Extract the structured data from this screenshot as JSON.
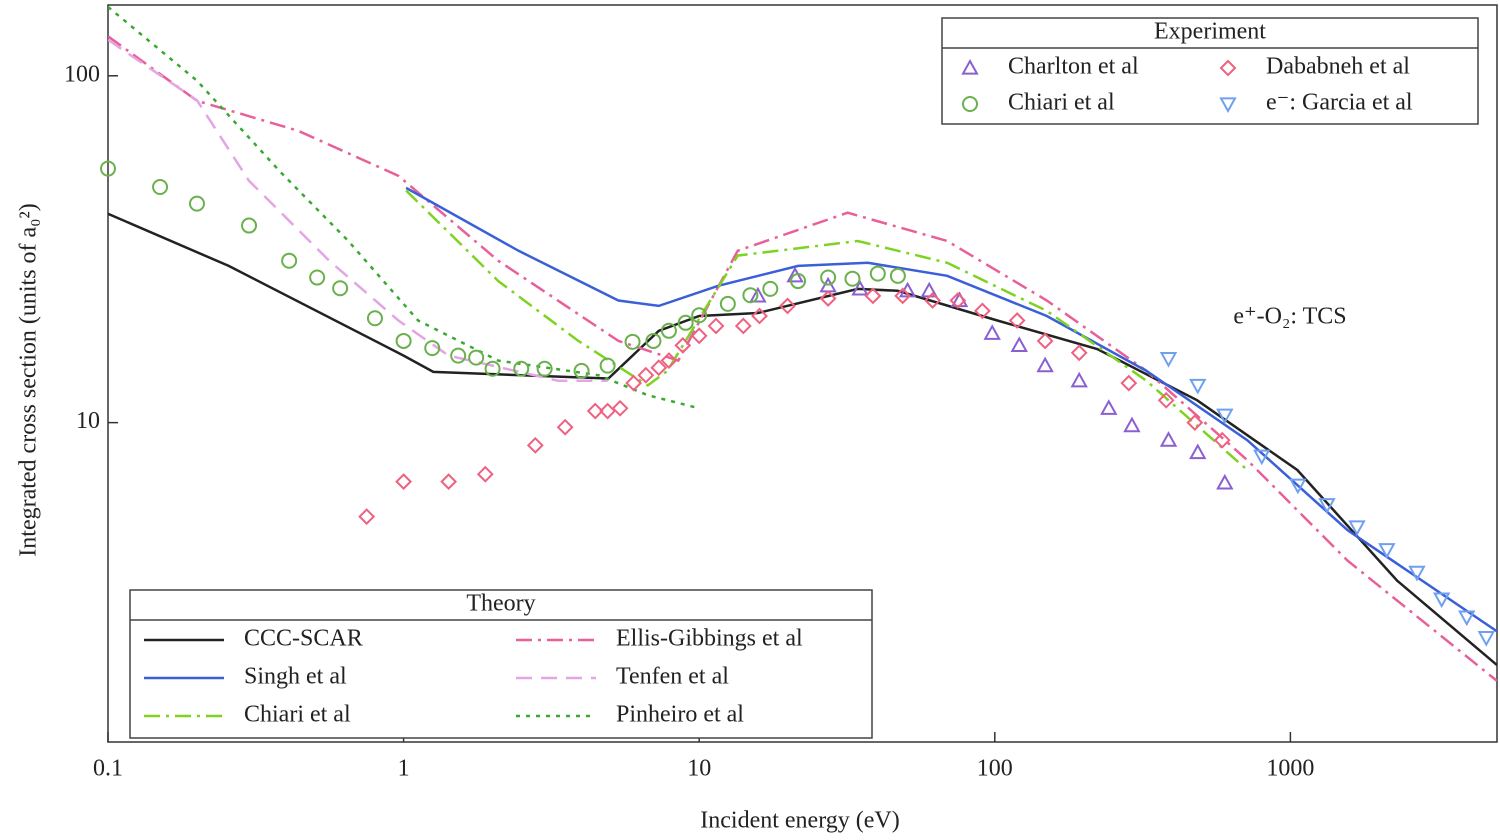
{
  "chart_data": {
    "type": "line",
    "xlabel": "Incident energy (eV)",
    "ylabel": "Integrated cross section (units of a₀²)",
    "annotation": "e⁺-O₂: TCS",
    "log_x": true,
    "log_y": true,
    "xlim": [
      0.1,
      5000
    ],
    "xticks": [
      0.1,
      1,
      10,
      100,
      1000
    ],
    "ylim": [
      1.2,
      160
    ],
    "yticks": [
      10,
      100
    ],
    "legend_titles": {
      "theory": "Theory",
      "experiment": "Experiment"
    },
    "legend_corners": {
      "theory": "lower left",
      "experiment": "upper right"
    },
    "series": [
      {
        "name": "CCC-SCAR",
        "group": "theory",
        "style": "solid",
        "color": "#222222",
        "x": [
          0.1,
          0.256,
          1,
          1.26,
          4.93,
          7.3,
          10,
          15.8,
          34.4,
          46.9,
          102,
          222,
          484,
          1055,
          2300,
          5000
        ],
        "values": [
          40,
          28.3,
          15.6,
          14.0,
          13.4,
          18.4,
          20.3,
          20.7,
          24.3,
          24.0,
          19.7,
          16.3,
          11.6,
          7.3,
          3.5,
          2.0
        ]
      },
      {
        "name": "Ellis-Gibbings et al",
        "group": "theory",
        "style": "dashdot",
        "color": "#e8609a",
        "x": [
          0.1,
          0.2,
          0.44,
          0.96,
          2.09,
          5.33,
          8.5,
          13.5,
          31.8,
          69,
          150,
          326,
          715,
          1560,
          5000
        ],
        "values": [
          130,
          84.7,
          69.4,
          51.5,
          29.3,
          17.2,
          15.1,
          31.3,
          40.3,
          33.4,
          22.5,
          14.1,
          7.8,
          4.0,
          1.8
        ]
      },
      {
        "name": "Singh et al",
        "group": "theory",
        "style": "solid",
        "color": "#3a5fd9",
        "x": [
          1.02,
          2.45,
          5.33,
          7.3,
          11.6,
          21.6,
          37.2,
          69,
          150,
          326,
          715,
          1560,
          5000
        ],
        "values": [
          47.5,
          31.3,
          22.5,
          21.7,
          24.8,
          28.3,
          28.9,
          26.5,
          20.3,
          14.1,
          8.9,
          4.9,
          2.5
        ]
      },
      {
        "name": "Tenfen et al",
        "group": "theory",
        "style": "dashed",
        "color": "#e3a6e3",
        "x": [
          0.1,
          0.2,
          0.3,
          0.56,
          0.96,
          1.42,
          3.34,
          4.9
        ],
        "values": [
          127,
          85,
          49.8,
          29.3,
          19.7,
          15.6,
          13.2,
          13.2
        ]
      },
      {
        "name": "Chiari et al",
        "group": "theory",
        "style": "dashdot",
        "color": "#7ed321",
        "x": [
          1.02,
          2.09,
          3.9,
          6.7,
          7.8,
          13.5,
          34.4,
          69,
          150,
          326,
          715
        ],
        "values": [
          46.7,
          25.6,
          17.2,
          12.8,
          14.1,
          30.3,
          33.4,
          28.9,
          21.0,
          13.2,
          7.3
        ]
      },
      {
        "name": "Pinheiro et al",
        "group": "theory",
        "style": "dotted",
        "color": "#3aa832",
        "x": [
          0.1,
          0.2,
          0.38,
          0.65,
          1.12,
          2.09,
          4.56,
          6.7,
          10
        ],
        "values": [
          158,
          96.8,
          53.2,
          33.4,
          19.7,
          15.1,
          13.7,
          12.0,
          11.0
        ]
      },
      {
        "name": "Charlton et al",
        "group": "experiment",
        "marker": "triangle-up",
        "color": "#8a5fd0",
        "x": [
          15.8,
          21.1,
          27.3,
          35,
          50.7,
          60,
          76,
          98,
          121,
          148,
          193,
          243,
          291,
          387,
          486,
          600
        ],
        "values": [
          23.2,
          26.5,
          24.8,
          24.3,
          24.0,
          24.0,
          22.5,
          18.1,
          16.7,
          14.6,
          13.2,
          11.0,
          9.8,
          8.9,
          8.2,
          6.7
        ]
      },
      {
        "name": "Dababneh et al",
        "group": "experiment",
        "marker": "diamond",
        "color": "#f06080",
        "x": [
          0.75,
          1.0,
          1.42,
          1.89,
          2.79,
          3.52,
          4.45,
          4.9,
          5.4,
          6.0,
          6.6,
          7.3,
          7.9,
          8.8,
          10,
          11.4,
          14.1,
          16.0,
          19.9,
          27.3,
          38.7,
          48.8,
          61.6,
          75,
          90.8,
          119,
          148,
          193,
          284,
          380,
          475,
          588
        ],
        "values": [
          5.36,
          6.76,
          6.76,
          7.1,
          8.6,
          9.7,
          10.8,
          10.8,
          11.0,
          13.0,
          13.7,
          14.4,
          15.1,
          16.7,
          17.8,
          19.0,
          19.0,
          20.3,
          21.7,
          22.8,
          23.2,
          23.2,
          22.5,
          22.5,
          21.0,
          19.7,
          17.2,
          15.9,
          13.0,
          11.6,
          10.0,
          8.9
        ]
      },
      {
        "name": "Chiari et al",
        "group": "experiment",
        "marker": "circle",
        "color": "#6ab04c",
        "x": [
          0.1,
          0.15,
          0.2,
          0.3,
          0.41,
          0.51,
          0.61,
          0.8,
          1,
          1.25,
          1.53,
          1.76,
          2.0,
          2.5,
          3.0,
          4.0,
          4.9,
          5.95,
          7.0,
          7.9,
          9.0,
          10,
          12.5,
          14.9,
          17.4,
          21.6,
          27.3,
          33,
          40.2,
          47
        ],
        "values": [
          54,
          47.8,
          42.8,
          37,
          29.3,
          26.2,
          24.4,
          20,
          17.2,
          16.4,
          15.6,
          15.4,
          14.3,
          14.3,
          14.3,
          14.1,
          14.6,
          17.1,
          17.2,
          18.4,
          19.4,
          20.4,
          22.0,
          23.3,
          24.3,
          25.6,
          26.2,
          26.0,
          26.9,
          26.5
        ]
      },
      {
        "name": "e⁻: Garcia et al",
        "group": "experiment",
        "marker": "triangle-down",
        "color": "#6fa0f0",
        "x": [
          387,
          486,
          600,
          800,
          1060,
          1330,
          1680,
          2120,
          2680,
          3250,
          3950,
          4600
        ],
        "values": [
          15.3,
          12.8,
          10.5,
          8.0,
          6.6,
          5.8,
          5.0,
          4.3,
          3.7,
          3.1,
          2.75,
          2.4
        ]
      }
    ]
  }
}
